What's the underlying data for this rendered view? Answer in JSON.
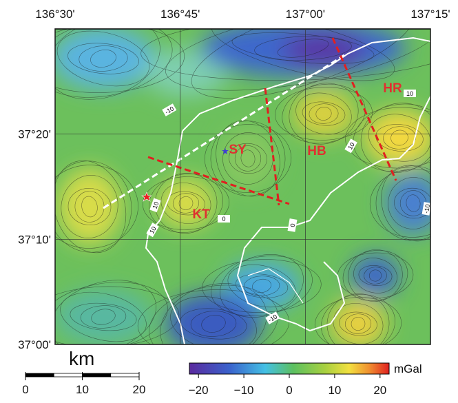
{
  "map": {
    "graticule": {
      "longitudes": [
        {
          "value": 136.5,
          "label": "136°30'"
        },
        {
          "value": 136.75,
          "label": "136°45'"
        },
        {
          "value": 137.0,
          "label": "137°00'"
        },
        {
          "value": 137.25,
          "label": "137°15'"
        }
      ],
      "latitudes": [
        {
          "value": 37.3333,
          "label": "37°20'"
        },
        {
          "value": 37.1667,
          "label": "37°10'"
        },
        {
          "value": 37.0,
          "label": "37°00'"
        }
      ]
    },
    "regions": [
      "SY",
      "HB",
      "HR",
      "KT"
    ],
    "contour_labels": [
      "-10",
      "10",
      "10",
      "0",
      "0",
      "-10",
      "-10",
      "10",
      "10"
    ],
    "colorbar": {
      "range": [
        -22,
        22
      ],
      "ticks": [
        {
          "value": -20,
          "label": "−20"
        },
        {
          "value": -10,
          "label": "−10"
        },
        0,
        10,
        20
      ],
      "unit": "mGal"
    },
    "scale_bar": {
      "unit": "km",
      "range": [
        0,
        20
      ],
      "ticks": [
        0,
        10,
        20
      ]
    }
  }
}
